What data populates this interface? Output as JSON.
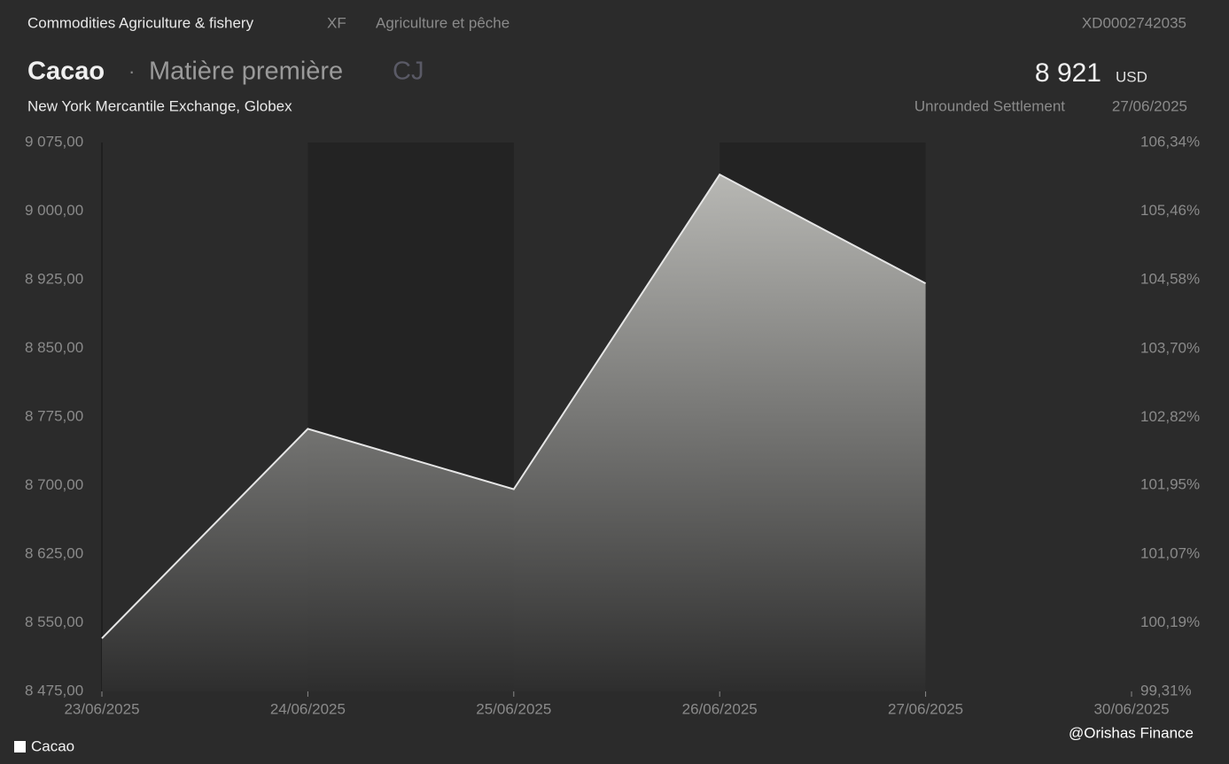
{
  "header": {
    "category": "Commodities Agriculture & fishery",
    "code": "XF",
    "category_fr": "Agriculture et pêche",
    "isin": "XD0002742035",
    "name": "Cacao",
    "separator": "·",
    "kind": "Matière première",
    "ticker": "CJ",
    "price": "8 921",
    "currency": "USD",
    "exchange": "New York Mercantile Exchange, Globex",
    "price_type": "Unrounded Settlement",
    "date": "27/06/2025"
  },
  "chart_data": {
    "type": "area",
    "categories": [
      "23/06/2025",
      "24/06/2025",
      "25/06/2025",
      "26/06/2025",
      "27/06/2025",
      "30/06/2025"
    ],
    "series": [
      {
        "name": "Cacao",
        "color": "#e6e6e6",
        "values": [
          8533,
          8762,
          8696,
          9040,
          8921,
          null
        ]
      }
    ],
    "ylim": [
      8475,
      9075
    ],
    "yticks": [
      {
        "value": 8475,
        "label": "8 475,00"
      },
      {
        "value": 8550,
        "label": "8 550,00"
      },
      {
        "value": 8625,
        "label": "8 625,00"
      },
      {
        "value": 8700,
        "label": "8 700,00"
      },
      {
        "value": 8775,
        "label": "8 775,00"
      },
      {
        "value": 8850,
        "label": "8 850,00"
      },
      {
        "value": 8925,
        "label": "8 925,00"
      },
      {
        "value": 9000,
        "label": "9 000,00"
      },
      {
        "value": 9075,
        "label": "9 075,00"
      }
    ],
    "y2lim": [
      99.31,
      106.34
    ],
    "y2ticks": [
      {
        "value": 99.31,
        "label": "99,31%"
      },
      {
        "value": 100.19,
        "label": "100,19%"
      },
      {
        "value": 101.07,
        "label": "101,07%"
      },
      {
        "value": 101.95,
        "label": "101,95%"
      },
      {
        "value": 102.82,
        "label": "102,82%"
      },
      {
        "value": 103.7,
        "label": "103,70%"
      },
      {
        "value": 104.58,
        "label": "104,58%"
      },
      {
        "value": 105.46,
        "label": "105,46%"
      },
      {
        "value": 106.34,
        "label": "106,34%"
      }
    ],
    "grid": false,
    "legend": "bottom-left"
  },
  "footer": {
    "watermark": "@Orishas Finance"
  }
}
